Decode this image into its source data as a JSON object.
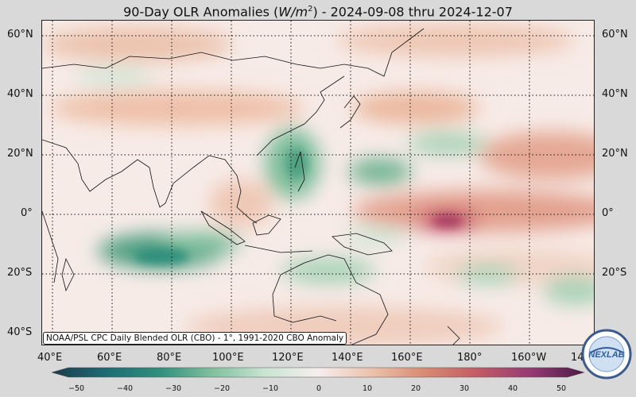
{
  "title": {
    "prefix": "90-Day OLR Anomalies (",
    "unit_base": "W/m",
    "unit_exp": "2",
    "suffix": ") - 2024-09-08 thru 2024-12-07"
  },
  "map": {
    "lat_labels_left": [
      "60°N",
      "40°N",
      "20°N",
      "0°",
      "20°S",
      "40°S"
    ],
    "lat_labels_right": [
      "60°N",
      "40°N",
      "20°N",
      "0°",
      "20°S"
    ],
    "lon_labels": [
      "40°E",
      "60°E",
      "80°E",
      "100°E",
      "120°E",
      "140°E",
      "160°E",
      "180°",
      "160°W",
      "14"
    ],
    "gridlines": "dotted",
    "projection": "cylindrical"
  },
  "note": "NOAA/PSL CPC Daily Blended OLR (CBO) - 1°, 1991-2020 CBO Anomaly",
  "colorbar": {
    "ticks": [
      "−50",
      "−40",
      "−30",
      "−20",
      "−10",
      "0",
      "10",
      "20",
      "30",
      "40",
      "50"
    ],
    "range": [
      -50,
      50
    ],
    "colors": [
      "#1b3b4b",
      "#1d6b73",
      "#2d8f7c",
      "#7fbf9d",
      "#c9e4d2",
      "#f6eeee",
      "#ecc2ad",
      "#d98a73",
      "#c25b66",
      "#963a73",
      "#4b1a45"
    ]
  },
  "logo": {
    "text": "NEXLAB"
  }
}
